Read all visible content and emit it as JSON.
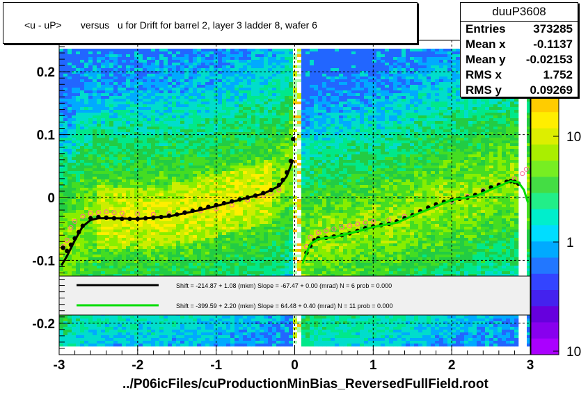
{
  "title": "<u - uP>       versus   u for Drift for barrel 2, layer 3 ladder 8, wafer 6",
  "x_axis_title": "../P06icFiles/cuProductionMinBias_ReversedFullField.root",
  "stats": {
    "name": "duuP3608",
    "rows": [
      {
        "label": "Entries",
        "value": "373285"
      },
      {
        "label": "Mean x",
        "value": "-0.1137"
      },
      {
        "label": "Mean y",
        "value": "-0.02153"
      },
      {
        "label": "RMS x",
        "value": "1.752"
      },
      {
        "label": "RMS y",
        "value": "0.09269"
      }
    ]
  },
  "colors": {
    "fit_left": "#000000",
    "fit_right": "#00dd00",
    "open_markers": "#ff6699",
    "heat_low": "#33cc33",
    "heat_high": "#ff9900"
  },
  "chart_data": {
    "type": "heatmap",
    "title": "<u - uP>       versus   u for Drift for barrel 2, layer 3 ladder 8, wafer 6",
    "xlabel": "../P06icFiles/cuProductionMinBias_ReversedFullField.root",
    "ylabel": "",
    "xlim": [
      -3,
      3
    ],
    "ylim": [
      -0.25,
      0.25
    ],
    "x_ticks": [
      "-3",
      "-2",
      "-1",
      "0",
      "1",
      "2",
      "3"
    ],
    "y_ticks": [
      "-0.2",
      "-0.1",
      "0",
      "0.1",
      "0.2"
    ],
    "z_scale": "log",
    "z_ticks": [
      "10",
      "1",
      "10"
    ],
    "grid": true,
    "legend": {
      "entries": [
        {
          "text": "Shift =  -214.87 + 1.08 (mkm) Slope =   -67.47 + 0.00 (mrad)  N = 6 prob = 0.000",
          "color": "#000000"
        },
        {
          "text": "Shift =  -399.59 + 2.20 (mkm) Slope =    64.48 + 0.40 (mrad)  N = 11 prob = 0.000",
          "color": "#00dd00"
        }
      ]
    },
    "profile_left": {
      "x": [
        -2.95,
        -2.9,
        -2.85,
        -2.8,
        -2.75,
        -2.7,
        -2.6,
        -2.5,
        -2.4,
        -2.3,
        -2.2,
        -2.1,
        -2.0,
        -1.9,
        -1.8,
        -1.7,
        -1.6,
        -1.5,
        -1.4,
        -1.3,
        -1.2,
        -1.1,
        -1.0,
        -0.9,
        -0.8,
        -0.7,
        -0.6,
        -0.5,
        -0.4,
        -0.3,
        -0.2,
        -0.15,
        -0.1,
        -0.05,
        -0.02
      ],
      "y": [
        -0.08,
        -0.085,
        -0.075,
        -0.065,
        -0.055,
        -0.045,
        -0.033,
        -0.031,
        -0.032,
        -0.033,
        -0.034,
        -0.034,
        -0.034,
        -0.033,
        -0.032,
        -0.031,
        -0.029,
        -0.027,
        -0.024,
        -0.021,
        -0.018,
        -0.015,
        -0.012,
        -0.009,
        -0.006,
        -0.003,
        0.0,
        0.003,
        0.007,
        0.012,
        0.02,
        0.028,
        0.04,
        0.058,
        0.093
      ]
    },
    "profile_right": {
      "x": [
        0.15,
        0.2,
        0.25,
        0.3,
        0.4,
        0.5,
        0.6,
        0.7,
        0.8,
        0.9,
        1.0,
        1.1,
        1.2,
        1.3,
        1.4,
        1.5,
        1.6,
        1.7,
        1.8,
        1.9,
        2.0,
        2.1,
        2.2,
        2.3,
        2.4,
        2.5,
        2.6,
        2.7,
        2.75,
        2.8,
        2.85
      ],
      "y": [
        -0.088,
        -0.077,
        -0.068,
        -0.065,
        -0.064,
        -0.062,
        -0.06,
        -0.057,
        -0.053,
        -0.049,
        -0.046,
        -0.044,
        -0.042,
        -0.038,
        -0.033,
        -0.028,
        -0.022,
        -0.016,
        -0.011,
        -0.007,
        -0.004,
        -0.002,
        0.0,
        0.004,
        0.01,
        0.016,
        0.02,
        0.025,
        0.026,
        0.025,
        0.022
      ]
    },
    "open_left": {
      "x": [
        -2.95,
        -2.9,
        -2.85,
        -2.8,
        -2.7,
        -2.6,
        -2.5,
        -2.4,
        -2.3,
        -2.2,
        -2.0,
        -1.8,
        -1.6,
        -1.4,
        -1.2,
        -1.0,
        -0.8,
        -0.6,
        -0.4,
        -0.3,
        -0.2
      ],
      "y": [
        -0.078,
        -0.068,
        -0.048,
        -0.038,
        -0.03,
        -0.025,
        -0.024,
        -0.023,
        -0.024,
        -0.025,
        -0.026,
        -0.027,
        -0.026,
        -0.024,
        -0.021,
        -0.018,
        -0.012,
        -0.004,
        0.003,
        0.007,
        0.012
      ]
    },
    "open_right": {
      "x": [
        0.15,
        0.2,
        0.3,
        0.4,
        0.5,
        0.6,
        0.7,
        0.8,
        0.9,
        1.0,
        1.2,
        1.4,
        1.6,
        1.8,
        2.0,
        2.2,
        2.4,
        2.6,
        2.8,
        2.9,
        2.95
      ],
      "y": [
        -0.078,
        -0.063,
        -0.056,
        -0.053,
        -0.05,
        -0.047,
        -0.045,
        -0.042,
        -0.04,
        -0.038,
        -0.036,
        -0.03,
        -0.022,
        -0.013,
        -0.006,
        0.002,
        0.012,
        0.02,
        0.03,
        0.038,
        0.045
      ]
    },
    "fit_left_curve": {
      "x": [
        -2.97,
        -2.9,
        -2.8,
        -2.7,
        -2.6,
        -2.5,
        -2.3,
        -2.0,
        -1.6,
        -1.2,
        -0.8,
        -0.4,
        -0.2,
        -0.1,
        -0.02
      ],
      "y": [
        -0.108,
        -0.093,
        -0.068,
        -0.046,
        -0.036,
        -0.033,
        -0.033,
        -0.034,
        -0.03,
        -0.02,
        -0.007,
        0.006,
        0.018,
        0.034,
        0.06
      ]
    },
    "fit_right_curve": {
      "x": [
        0.1,
        0.15,
        0.2,
        0.3,
        0.5,
        0.8,
        1.0,
        1.3,
        1.6,
        2.0,
        2.3,
        2.6,
        2.75,
        2.85,
        2.92,
        2.97
      ],
      "y": [
        -0.105,
        -0.088,
        -0.074,
        -0.066,
        -0.063,
        -0.054,
        -0.047,
        -0.04,
        -0.024,
        -0.004,
        0.002,
        0.018,
        0.026,
        0.024,
        0.012,
        -0.008
      ]
    }
  }
}
